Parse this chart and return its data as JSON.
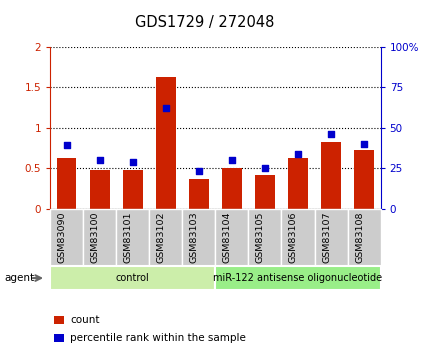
{
  "title": "GDS1729 / 272048",
  "samples": [
    "GSM83090",
    "GSM83100",
    "GSM83101",
    "GSM83102",
    "GSM83103",
    "GSM83104",
    "GSM83105",
    "GSM83106",
    "GSM83107",
    "GSM83108"
  ],
  "counts": [
    0.62,
    0.48,
    0.48,
    1.62,
    0.37,
    0.5,
    0.42,
    0.62,
    0.82,
    0.72
  ],
  "percentiles": [
    39,
    30,
    29,
    62,
    23,
    30,
    25,
    34,
    46,
    40
  ],
  "bar_color": "#cc2200",
  "dot_color": "#0000cc",
  "ylim_left": [
    0,
    2
  ],
  "ylim_right": [
    0,
    100
  ],
  "yticks_left": [
    0,
    0.5,
    1.0,
    1.5,
    2.0
  ],
  "ytick_labels_left": [
    "0",
    "0.5",
    "1",
    "1.5",
    "2"
  ],
  "yticks_right": [
    0,
    25,
    50,
    75,
    100
  ],
  "ytick_labels_right": [
    "0",
    "25",
    "50",
    "75",
    "100%"
  ],
  "groups": [
    {
      "label": "control",
      "start": 0,
      "end": 5,
      "color": "#cceeaa"
    },
    {
      "label": "miR-122 antisense oligonucleotide",
      "start": 5,
      "end": 10,
      "color": "#99ee88"
    }
  ],
  "agent_label": "agent",
  "legend_items": [
    {
      "label": "count",
      "color": "#cc2200"
    },
    {
      "label": "percentile rank within the sample",
      "color": "#0000cc"
    }
  ],
  "grid_color": "#000000",
  "left_axis_color": "#cc2200",
  "right_axis_color": "#0000cc",
  "tick_label_bg": "#cccccc",
  "fig_bg": "#ffffff"
}
